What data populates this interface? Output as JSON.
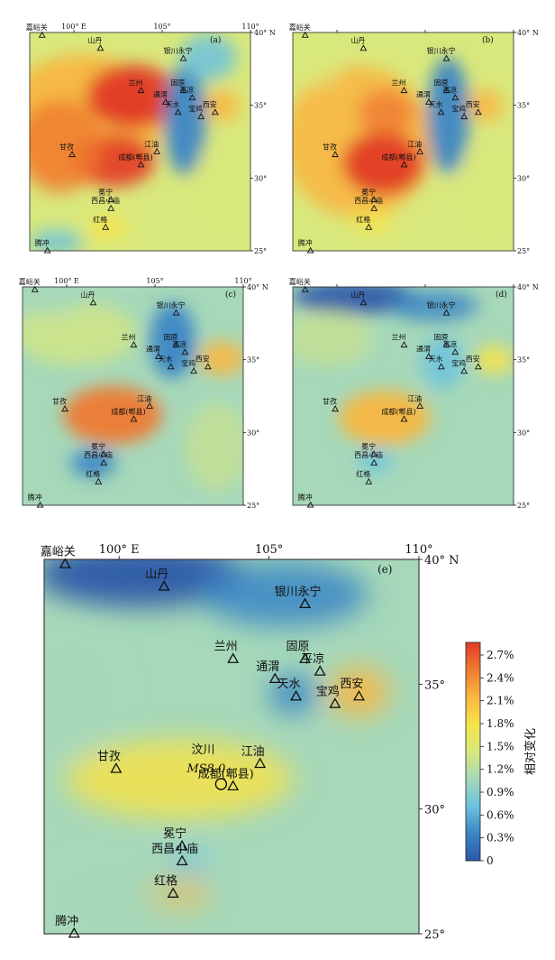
{
  "panels": [
    {
      "id": "a",
      "letter": "(a)",
      "pattern": "a",
      "show_xtick_labels": true,
      "show_ytick_labels": true,
      "show_x_unit": false,
      "show_lat_unit": false
    },
    {
      "id": "b",
      "letter": "(b)",
      "pattern": "b",
      "show_xtick_labels": false,
      "show_ytick_labels": true,
      "show_x_unit": false,
      "show_lat_unit": false
    },
    {
      "id": "c",
      "letter": "(c)",
      "pattern": "c",
      "show_xtick_labels": true,
      "show_ytick_labels": true,
      "show_x_unit": false,
      "show_lat_unit": false
    },
    {
      "id": "d",
      "letter": "(d)",
      "pattern": "d",
      "show_xtick_labels": false,
      "show_ytick_labels": true,
      "show_x_unit": false,
      "show_lat_unit": false
    },
    {
      "id": "e",
      "letter": "(e)",
      "pattern": "e",
      "show_xtick_labels": true,
      "show_ytick_labels": true,
      "show_x_unit": true,
      "show_lat_unit": true
    }
  ],
  "axes": {
    "lon_range": [
      97.5,
      110
    ],
    "lat_range": [
      25,
      40
    ],
    "lon_ticks": [
      {
        "lon": 100,
        "label": "100°"
      },
      {
        "lon": 105,
        "label": "105°"
      },
      {
        "lon": 110,
        "label": "110°"
      }
    ],
    "lat_ticks": [
      {
        "lat": 40,
        "label": "40°"
      },
      {
        "lat": 35,
        "label": "35°"
      },
      {
        "lat": 30,
        "label": "30°"
      },
      {
        "lat": 25,
        "label": "25°"
      }
    ],
    "x_unit": "E",
    "lat_unit": "N"
  },
  "stations": [
    {
      "name": "嘉峪关",
      "lon": 98.2,
      "lat": 39.8
    },
    {
      "name": "山丹",
      "lon": 101.5,
      "lat": 38.9
    },
    {
      "name": "银川永宁",
      "lon": 106.2,
      "lat": 38.2
    },
    {
      "name": "兰州",
      "lon": 103.8,
      "lat": 36.0
    },
    {
      "name": "固原",
      "lon": 106.2,
      "lat": 36.0
    },
    {
      "name": "通渭",
      "lon": 105.2,
      "lat": 35.2
    },
    {
      "name": "平凉",
      "lon": 106.7,
      "lat": 35.5
    },
    {
      "name": "天水",
      "lon": 105.9,
      "lat": 34.5
    },
    {
      "name": "宝鸡",
      "lon": 107.2,
      "lat": 34.2
    },
    {
      "name": "西安",
      "lon": 108.0,
      "lat": 34.5
    },
    {
      "name": "甘孜",
      "lon": 99.9,
      "lat": 31.6
    },
    {
      "name": "江油",
      "lon": 104.7,
      "lat": 31.8
    },
    {
      "name": "成都(郫县)",
      "lon": 103.8,
      "lat": 30.9
    },
    {
      "name": "冕宁",
      "lon": 102.1,
      "lat": 28.5
    },
    {
      "name": "西昌小庙",
      "lon": 102.1,
      "lat": 27.9
    },
    {
      "name": "红格",
      "lon": 101.8,
      "lat": 26.6
    },
    {
      "name": "腾冲",
      "lon": 98.5,
      "lat": 25.0
    }
  ],
  "epicenter": {
    "label_name": "汶川",
    "label_ms": "MS8.0",
    "lon": 103.4,
    "lat": 31.0
  },
  "colorbar": {
    "title": "相对变化",
    "ticks": [
      "2.7%",
      "2.4%",
      "2.1%",
      "1.8%",
      "1.5%",
      "1.2%",
      "0.9%",
      "0.6%",
      "0.3%",
      "0"
    ],
    "stops": [
      "#2b58a8",
      "#3b86c6",
      "#6cc2de",
      "#a6d8b9",
      "#d9e87c",
      "#f6e34a",
      "#f8b742",
      "#ef7a31",
      "#e23b27"
    ]
  }
}
